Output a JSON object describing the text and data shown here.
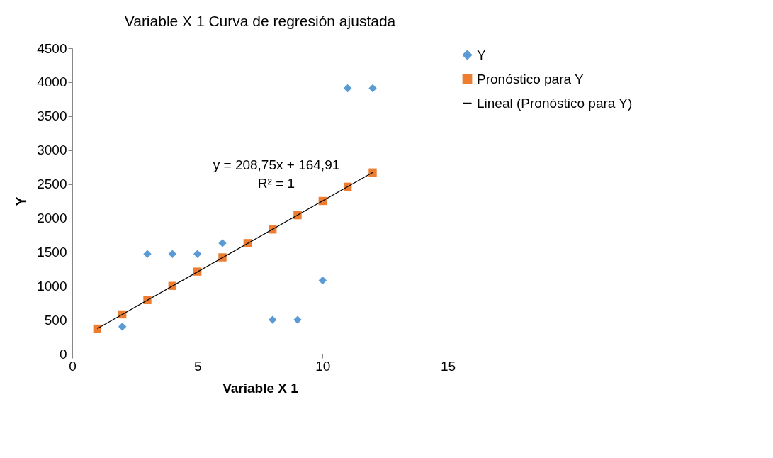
{
  "chart_data": {
    "type": "scatter",
    "title": "Variable X 1 Curva de regresión ajustada",
    "xlabel": "Variable X 1",
    "ylabel": "Y",
    "xlim": [
      0,
      15
    ],
    "xticks": [
      0,
      5,
      10,
      15
    ],
    "ylim": [
      0,
      4500
    ],
    "yticks": [
      0,
      500,
      1000,
      1500,
      2000,
      2500,
      3000,
      3500,
      4000,
      4500
    ],
    "grid": false,
    "legend": "right",
    "series": [
      {
        "name": "Y",
        "color": "#5b9bd5",
        "marker": "diamond",
        "x": [
          2,
          3,
          4,
          5,
          6,
          8,
          9,
          10,
          11,
          12
        ],
        "values": [
          400,
          1470,
          1470,
          1470,
          1630,
          500,
          500,
          1080,
          3910,
          3910
        ]
      },
      {
        "name": "Pronóstico para Y",
        "color": "#ed7d31",
        "marker": "square",
        "x": [
          1,
          2,
          3,
          4,
          5,
          6,
          7,
          8,
          9,
          10,
          11,
          12
        ],
        "values": [
          370,
          580,
          790,
          1000,
          1210,
          1420,
          1630,
          1830,
          2040,
          2250,
          2460,
          2670
        ]
      },
      {
        "name": "Lineal (Pronóstico para Y)",
        "type": "line",
        "color": "#000000",
        "marker": "none",
        "line_style": "solid",
        "x": [
          1,
          12
        ],
        "values": [
          370,
          2670
        ]
      }
    ],
    "annotations": [
      "y = 208,75x + 164,91",
      "R² = 1"
    ]
  }
}
